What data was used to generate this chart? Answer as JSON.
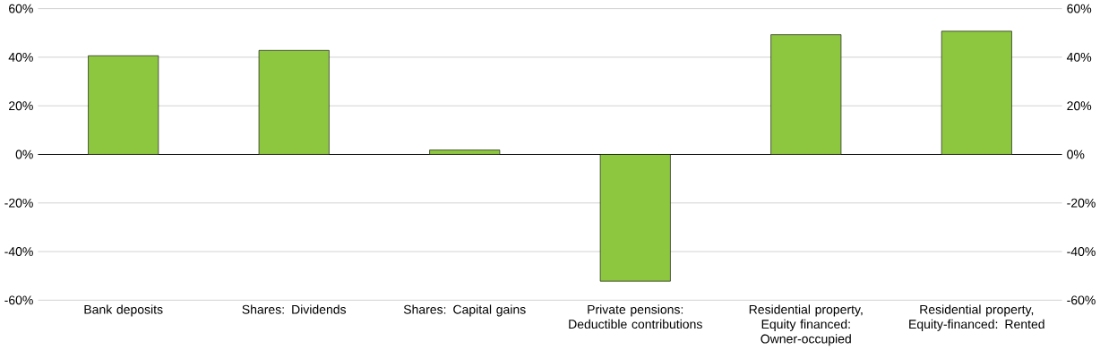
{
  "chart_data": {
    "type": "bar",
    "categories": [
      "Bank deposits",
      "Shares: Dividends",
      "Shares: Capital gains",
      "Private pensions: Deductible contributions",
      "Residential property, Equity financed: Owner-occupied",
      "Residential property, Equity-financed: Rented"
    ],
    "values": [
      40.6,
      42.8,
      1.8,
      -52.2,
      49.3,
      50.7
    ],
    "color": "#8dc63f",
    "ylim": [
      -60,
      60
    ],
    "yticks": [
      {
        "value": -60,
        "label": "-60%"
      },
      {
        "value": -40,
        "label": "-40%"
      },
      {
        "value": -20,
        "label": "-20%"
      },
      {
        "value": 0,
        "label": "0%"
      },
      {
        "value": 20,
        "label": "20%"
      },
      {
        "value": 40,
        "label": "40%"
      },
      {
        "value": 60,
        "label": "60%"
      }
    ],
    "y2lim": [
      -60,
      60
    ],
    "y2ticks": [
      {
        "value": -60,
        "label": "-60%"
      },
      {
        "value": -40,
        "label": "-40%"
      },
      {
        "value": -20,
        "label": "-20%"
      },
      {
        "value": 0,
        "label": "0%"
      },
      {
        "value": 20,
        "label": "20%"
      },
      {
        "value": 40,
        "label": "40%"
      },
      {
        "value": 60,
        "label": "60%"
      }
    ],
    "grid": "y"
  }
}
